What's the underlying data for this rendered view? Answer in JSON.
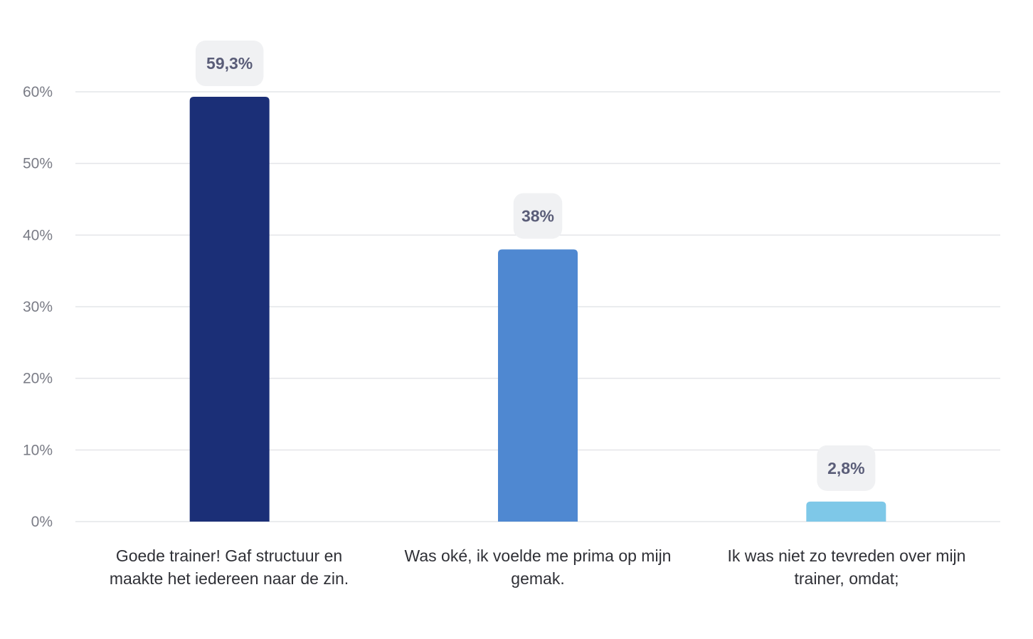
{
  "chart_data": {
    "type": "bar",
    "title": "",
    "xlabel": "",
    "ylabel": "",
    "ylim": [
      0,
      60
    ],
    "yticks": [
      0,
      10,
      20,
      30,
      40,
      50,
      60
    ],
    "ytick_labels": [
      "0%",
      "10%",
      "20%",
      "30%",
      "40%",
      "50%",
      "60%"
    ],
    "grid": true,
    "categories": [
      "Goede trainer! Gaf structuur en maakte het iedereen naar de zin.",
      "Was oké, ik voelde me prima op mijn gemak.",
      "Ik was niet zo tevreden over mijn trainer, omdat;"
    ],
    "values": [
      59.3,
      38,
      2.8
    ],
    "value_labels": [
      "59,3%",
      "38%",
      "2,8%"
    ],
    "colors": [
      "#1b2f77",
      "#4f88d1",
      "#7ec8e8"
    ],
    "grid_color": "#e4e5e9",
    "badge_color": "#f0f1f3"
  }
}
